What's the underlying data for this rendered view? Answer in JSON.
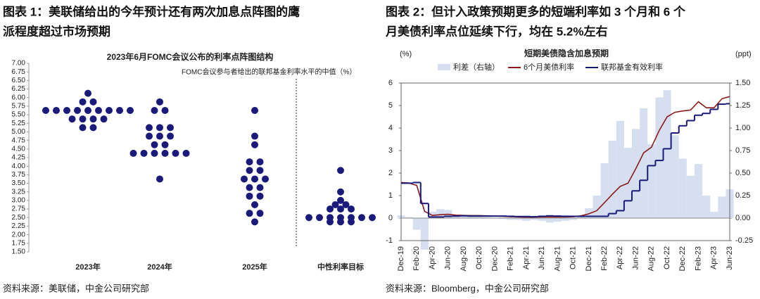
{
  "chart_data": [
    {
      "type": "dot",
      "figure_title": [
        "图表 1：美联储给出的今年预计还有两次加息点阵图的鹰",
        "派程度超过市场预期"
      ],
      "title": "2023年6月FOMC会议公布的利率点阵图结构",
      "annotation": "FOMC会议参与者给出的联邦基金利率水平的中值（%）",
      "source": "资料来源：美联储，中金公司研究部",
      "color": "#1a1a7a",
      "categories": [
        "2023年",
        "2024年",
        "2025年",
        "中性利率目标"
      ],
      "values": [
        [
          6.125,
          5.875,
          5.875,
          5.625,
          5.625,
          5.625,
          5.625,
          5.625,
          5.625,
          5.625,
          5.625,
          5.625,
          5.375,
          5.375,
          5.375,
          5.375,
          5.125,
          5.125
        ],
        [
          5.875,
          5.625,
          5.625,
          5.125,
          5.125,
          5.125,
          4.875,
          4.875,
          4.875,
          4.625,
          4.625,
          4.375,
          4.375,
          4.375,
          4.375,
          4.375,
          4.375,
          3.625
        ],
        [
          5.625,
          4.875,
          4.625,
          4.125,
          4.125,
          3.875,
          3.875,
          3.625,
          3.625,
          3.625,
          3.375,
          3.375,
          3.125,
          3.125,
          2.875,
          2.625,
          2.625,
          2.375
        ],
        [
          3.875,
          3.25,
          3.0,
          2.875,
          2.875,
          2.75,
          2.75,
          2.75,
          2.5,
          2.5,
          2.5,
          2.5,
          2.5,
          2.5,
          2.5,
          2.375,
          2.375,
          2.375
        ]
      ],
      "ylim": [
        1.5,
        7.0
      ],
      "yticks": [
        {
          "value": 7.0,
          "label": "7.00"
        },
        {
          "value": 6.75,
          "label": "6.75"
        },
        {
          "value": 6.5,
          "label": "6.50"
        },
        {
          "value": 6.25,
          "label": "6.25"
        },
        {
          "value": 6.0,
          "label": "6.00"
        },
        {
          "value": 5.75,
          "label": "5.75"
        },
        {
          "value": 5.5,
          "label": "5.50"
        },
        {
          "value": 5.25,
          "label": "5.25"
        },
        {
          "value": 5.0,
          "label": "5.00"
        },
        {
          "value": 4.75,
          "label": "4.75"
        },
        {
          "value": 4.5,
          "label": "4.50"
        },
        {
          "value": 4.25,
          "label": "4.25"
        },
        {
          "value": 4.0,
          "label": "4.00"
        },
        {
          "value": 3.75,
          "label": "3.75"
        },
        {
          "value": 3.5,
          "label": "3.50"
        },
        {
          "value": 3.25,
          "label": "3.25"
        },
        {
          "value": 3.0,
          "label": "3.00"
        },
        {
          "value": 2.75,
          "label": "2.75"
        },
        {
          "value": 2.5,
          "label": "2.50"
        },
        {
          "value": 2.25,
          "label": "2.25"
        },
        {
          "value": 2.0,
          "label": "2.00"
        },
        {
          "value": 1.75,
          "label": "1.75"
        },
        {
          "value": 1.5,
          "label": "1.50"
        }
      ]
    },
    {
      "type": "line",
      "figure_title": [
        "图表 2：但计入政策预期更多的短端利率如 3 个月和 6 个",
        "月美债利率点位延续下行，均在 5.2%左右"
      ],
      "title": "短期美债隐含加息预期",
      "y_label": "(%)",
      "y2_label": "(ppt)",
      "source": "资料来源：Bloomberg，中金公司研究部",
      "categories": [
        "Dec-19",
        null,
        "Feb-20",
        null,
        "Apr-20",
        null,
        "Jun-20",
        null,
        "Aug-20",
        null,
        "Oct-20",
        null,
        "Dec-20",
        null,
        "Feb-21",
        null,
        "Apr-21",
        null,
        "Jun-21",
        null,
        "Aug-21",
        null,
        "Oct-21",
        null,
        "Dec-21",
        null,
        "Feb-22",
        null,
        "Apr-22",
        null,
        "Jun-22",
        null,
        "Aug-22",
        null,
        "Oct-22",
        null,
        "Dec-22",
        null,
        "Feb-23",
        null,
        "Apr-23",
        null,
        "Jun-23"
      ],
      "series": [
        {
          "name": "利差（右轴）",
          "color": "#d6dff0",
          "axis": "y2",
          "values": [
            0.03,
            0.01,
            -0.13,
            -0.35,
            0.07,
            0.1,
            0.09,
            0.04,
            0.02,
            0.02,
            0.02,
            0.01,
            0.0,
            -0.01,
            -0.02,
            -0.02,
            -0.03,
            -0.02,
            -0.03,
            -0.05,
            -0.04,
            -0.03,
            -0.02,
            0.02,
            0.11,
            0.25,
            0.61,
            0.86,
            1.08,
            0.78,
            0.99,
            1.22,
            0.82,
            1.34,
            1.42,
            0.92,
            0.66,
            0.47,
            0.6,
            0.25,
            0.07,
            0.24,
            0.32
          ]
        },
        {
          "name": "6个月美债利率",
          "color": "#8b1a1a",
          "values": [
            1.58,
            1.56,
            1.45,
            0.3,
            0.12,
            0.15,
            0.17,
            0.13,
            0.12,
            0.11,
            0.11,
            0.1,
            0.09,
            0.08,
            0.06,
            0.05,
            0.04,
            0.04,
            0.05,
            0.05,
            0.05,
            0.05,
            0.06,
            0.1,
            0.19,
            0.33,
            0.69,
            1.06,
            1.41,
            1.55,
            2.2,
            2.9,
            3.15,
            3.9,
            4.5,
            4.7,
            4.76,
            4.8,
            5.17,
            4.9,
            4.9,
            5.3,
            5.4
          ]
        },
        {
          "name": "联邦基金有效利率",
          "color": "#1a1a7a",
          "values": [
            1.55,
            1.55,
            1.58,
            0.65,
            0.05,
            0.05,
            0.08,
            0.09,
            0.1,
            0.09,
            0.09,
            0.09,
            0.09,
            0.09,
            0.08,
            0.07,
            0.07,
            0.06,
            0.08,
            0.1,
            0.09,
            0.08,
            0.08,
            0.08,
            0.08,
            0.08,
            0.08,
            0.2,
            0.33,
            0.77,
            1.21,
            1.68,
            2.33,
            2.56,
            3.08,
            3.78,
            4.1,
            4.33,
            4.57,
            4.65,
            4.83,
            5.06,
            5.08
          ]
        }
      ],
      "ylim": [
        -1,
        6
      ],
      "yticks": [
        -1,
        0,
        1,
        2,
        3,
        4,
        5,
        6
      ],
      "y2lim": [
        -0.25,
        1.5
      ],
      "y2ticks": [
        {
          "value": -0.25,
          "label": "-0.25"
        },
        {
          "value": 0,
          "label": "0.00"
        },
        {
          "value": 0.25,
          "label": "0.25"
        },
        {
          "value": 0.5,
          "label": "0.50"
        },
        {
          "value": 0.75,
          "label": "0.75"
        },
        {
          "value": 1.0,
          "label": "1.00"
        },
        {
          "value": 1.25,
          "label": "1.25"
        },
        {
          "value": 1.5,
          "label": "1.50"
        }
      ]
    }
  ]
}
